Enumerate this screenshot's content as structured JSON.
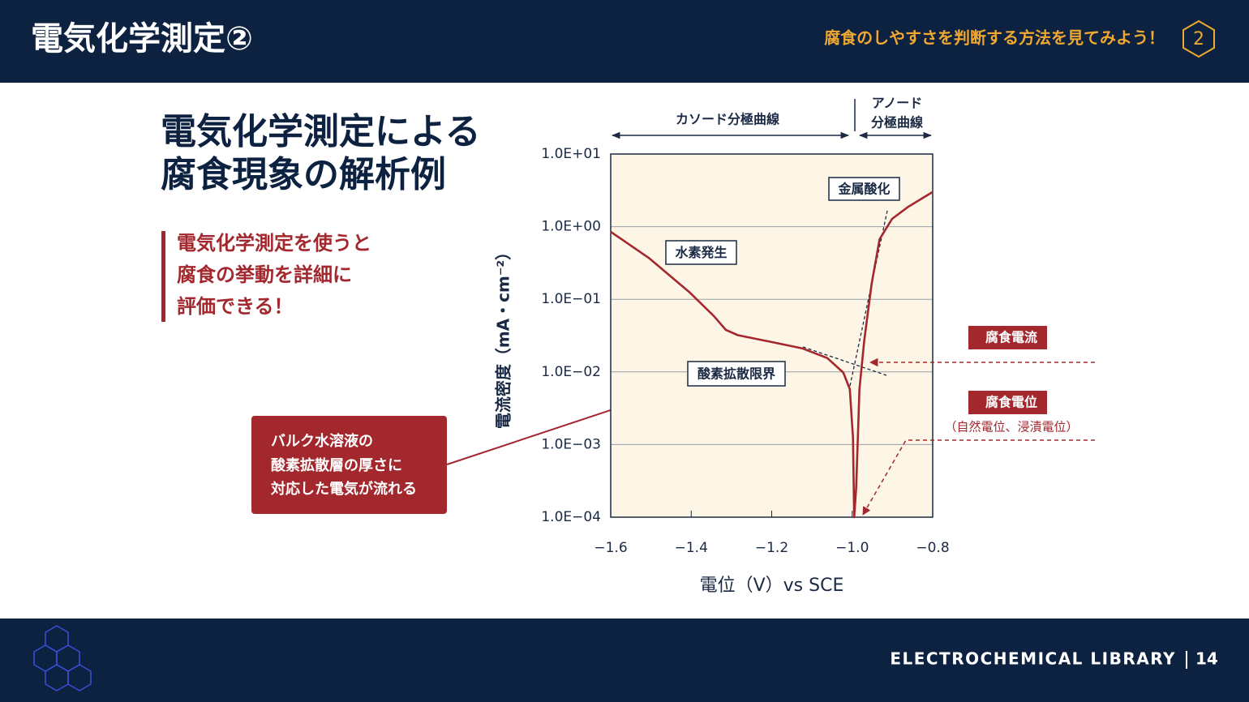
{
  "header": {
    "title": "電気化学測定②",
    "subtitle": "腐食のしやすさを判断する方法を見てみよう！",
    "step": "2"
  },
  "heading": [
    "電気化学測定による",
    "腐食現象の解析例"
  ],
  "point": [
    "電気化学測定を使うと",
    "腐食の挙動を詳細に",
    "評価できる！"
  ],
  "callout": [
    "バルク水溶液の",
    "酸素拡散層の厚さに",
    "対応した電気が流れる"
  ],
  "chart_data": {
    "type": "line",
    "x_label": "電位（V）vs SCE",
    "y_label": "電流密度（mA・cm⁻²）",
    "x": [
      -1.6,
      -1.505,
      -1.405,
      -1.344,
      -1.314,
      -1.284,
      -1.203,
      -1.123,
      -1.062,
      -1.022,
      -1.006,
      -0.998,
      -0.995,
      -0.99,
      -0.982,
      -0.97,
      -0.952,
      -0.932,
      -0.901,
      -0.861,
      -0.8
    ],
    "values": [
      0.85,
      0.37,
      0.126,
      0.059,
      0.038,
      0.032,
      0.026,
      0.021,
      0.0155,
      0.0098,
      0.0058,
      0.00126,
      0.0001,
      0.00026,
      0.0058,
      0.027,
      0.16,
      0.67,
      1.28,
      1.87,
      3.0
    ],
    "color": "#a3282e",
    "yscale": "log",
    "xlim": [
      -1.6,
      -0.8
    ],
    "xticks": [
      {
        "value": -1.6,
        "label": "−1.6"
      },
      {
        "value": -1.4,
        "label": "−1.4"
      },
      {
        "value": -1.2,
        "label": "−1.2"
      },
      {
        "value": -1.0,
        "label": "−1.0"
      },
      {
        "value": -0.8,
        "label": "−0.8"
      }
    ],
    "ylim": [
      0.0001,
      10
    ],
    "yticks": [
      {
        "value": 0.0001,
        "label": "1.0E−04"
      },
      {
        "value": 0.001,
        "label": "1.0E−03"
      },
      {
        "value": 0.01,
        "label": "1.0E−02"
      },
      {
        "value": 0.1,
        "label": "1.0E−01"
      },
      {
        "value": 1,
        "label": "1.0E+00"
      },
      {
        "value": 10,
        "label": "1.0E+01"
      }
    ],
    "grid": true,
    "annotations": {
      "cathodic": "カソード分極曲線",
      "anodic": [
        "アノード",
        "分極曲線"
      ],
      "oxidation": "金属酸化",
      "hydrogen": "水素発生",
      "oxygen": "酸素拡散限界",
      "corrosion_current": "腐食電流",
      "corrosion_potential": "腐食電位",
      "potential_note": "（自然電位、浸漬電位）"
    }
  },
  "footer": {
    "brand": "ELECTROCHEMICAL LIBRARY",
    "page": "14"
  }
}
